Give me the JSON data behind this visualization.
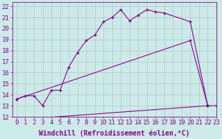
{
  "background_color": "#cceae7",
  "line_color": "#880088",
  "grid_color": "#aabbcc",
  "xlabel": "Windchill (Refroidissement éolien,°C)",
  "xlabel_fontsize": 7,
  "tick_fontsize": 6.5,
  "xlim": [
    -0.5,
    23
  ],
  "ylim": [
    12,
    22.4
  ],
  "xticks": [
    0,
    1,
    2,
    3,
    4,
    5,
    6,
    7,
    8,
    9,
    10,
    11,
    12,
    13,
    14,
    15,
    16,
    17,
    18,
    19,
    20,
    21,
    22,
    23
  ],
  "yticks": [
    12,
    13,
    14,
    15,
    16,
    17,
    18,
    19,
    20,
    21,
    22
  ],
  "line1_x": [
    0,
    1,
    2,
    3,
    4,
    5,
    6,
    7,
    8,
    9,
    10,
    11,
    12,
    13,
    14,
    15,
    16,
    17,
    20,
    22
  ],
  "line1_y": [
    13.6,
    13.9,
    13.9,
    13.0,
    14.4,
    14.4,
    16.5,
    17.8,
    18.9,
    19.4,
    20.6,
    21.0,
    21.7,
    20.7,
    21.2,
    21.7,
    21.5,
    21.4,
    20.6,
    13.0
  ],
  "line2_x": [
    0,
    20,
    22
  ],
  "line2_y": [
    13.6,
    18.9,
    13.0
  ],
  "line3_x": [
    3,
    22,
    23
  ],
  "line3_y": [
    11.9,
    13.0,
    13.0
  ],
  "figwidth": 3.2,
  "figheight": 2.0,
  "dpi": 100
}
